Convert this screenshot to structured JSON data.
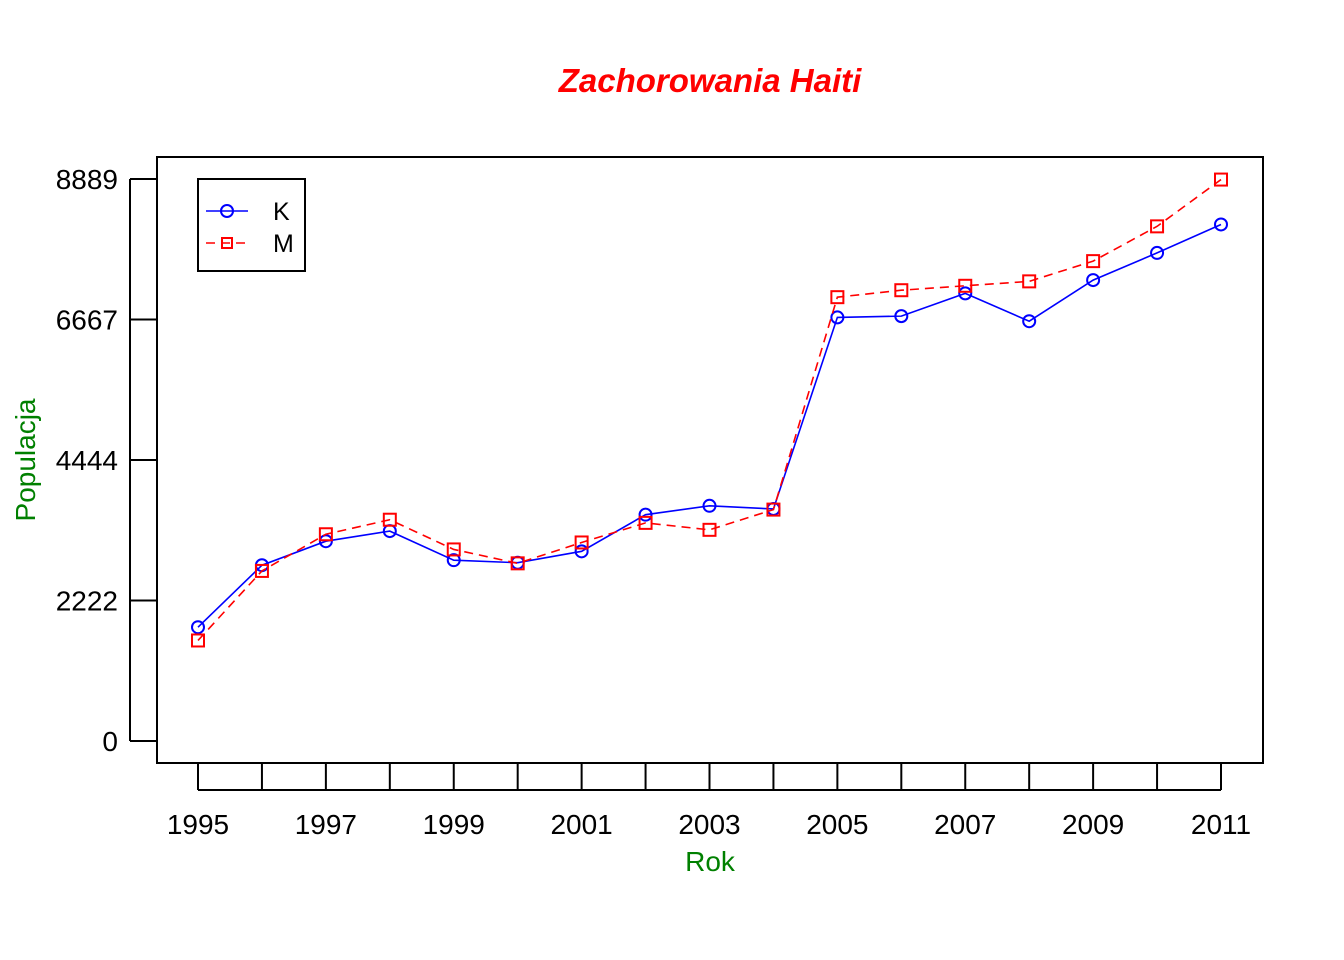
{
  "chart_data": {
    "type": "line",
    "title": "Zachorowania Haiti",
    "xlabel": "Rok",
    "ylabel": "Populacja",
    "x": [
      1995,
      1996,
      1997,
      1998,
      1999,
      2000,
      2001,
      2002,
      2003,
      2004,
      2005,
      2006,
      2007,
      2008,
      2009,
      2010,
      2011
    ],
    "x_tick_labels": [
      "1995",
      "1997",
      "1999",
      "2001",
      "2003",
      "2005",
      "2007",
      "2009",
      "2011"
    ],
    "y_ticks": [
      0,
      2222,
      4444,
      6667,
      8889
    ],
    "y_tick_labels": [
      "0",
      "2222",
      "4444",
      "6667",
      "8889"
    ],
    "xlim": [
      1995,
      2011
    ],
    "ylim": [
      0,
      8889
    ],
    "legend_position": "top-left",
    "grid": false,
    "series": [
      {
        "name": "K",
        "color": "#0000ff",
        "line_style": "solid",
        "marker": "circle",
        "values": [
          1800,
          2780,
          3160,
          3320,
          2860,
          2820,
          3000,
          3580,
          3720,
          3670,
          6700,
          6720,
          7080,
          6640,
          7290,
          7720,
          8170
        ]
      },
      {
        "name": "M",
        "color": "#ff0000",
        "line_style": "dashed",
        "marker": "square",
        "values": [
          1590,
          2690,
          3270,
          3500,
          3030,
          2810,
          3140,
          3450,
          3340,
          3660,
          7020,
          7130,
          7200,
          7270,
          7590,
          8140,
          8880
        ]
      }
    ],
    "colors": {
      "title": "#ff0000",
      "axis_labels": "#008000"
    }
  }
}
